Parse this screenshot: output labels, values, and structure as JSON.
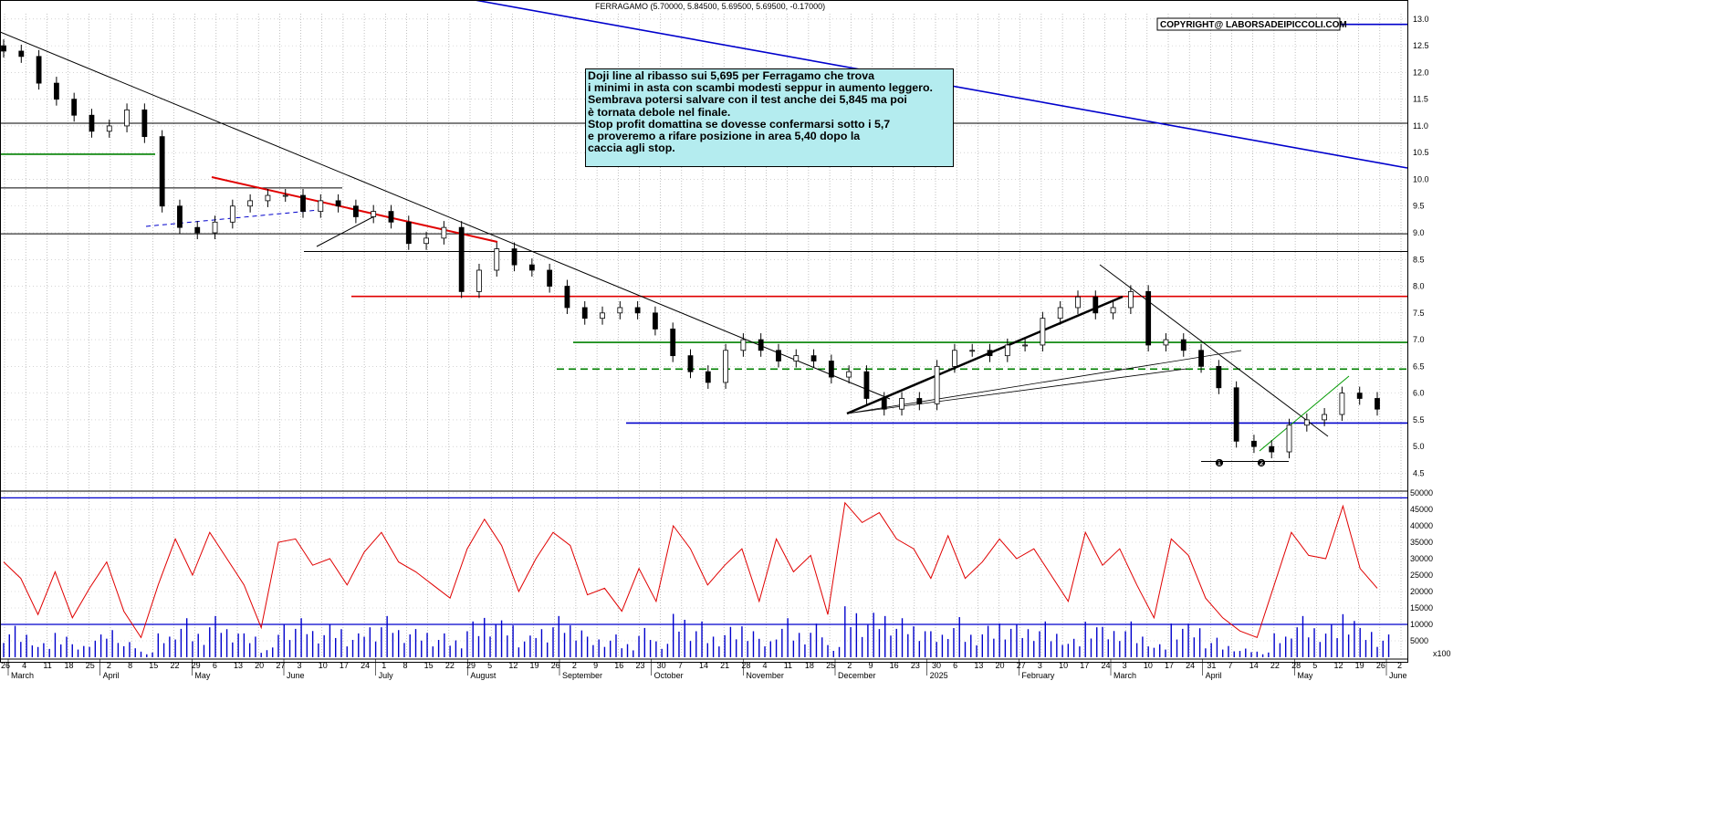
{
  "header": {
    "ticker_line": "FERRAGAMO (5.70000, 5.84500, 5.69500, 5.69500, -0.17000)",
    "copyright": "COPYRIGHT@ LABORSADEIPICCOLI.COM"
  },
  "note": {
    "lines": [
      "Doji line al ribasso sui 5,695 per Ferragamo che trova",
      "i minimi in asta con scambi modesti seppur in aumento leggero.",
      "Sembrava potersi salvare con il test anche dei 5,845 ma poi",
      "è tornata debole nel finale.",
      "Stop profit domattina se dovesse confermarsi sotto i 5,7",
      "e proveremo a rifare posizione in area 5,40 dopo la",
      "caccia agli stop."
    ]
  },
  "markers": [
    "❶",
    "❷"
  ],
  "volume_unit_label": "x100",
  "chart_data": [
    {
      "type": "candlestick",
      "title": "FERRAGAMO",
      "ylim": [
        4.2,
        13.1
      ],
      "y_ticks": [
        "4.5",
        "5.0",
        "5.5",
        "6.0",
        "6.5",
        "7.0",
        "7.5",
        "8.0",
        "8.5",
        "9.0",
        "9.5",
        "10.0",
        "10.5",
        "11.0",
        "11.5",
        "12.0",
        "12.5",
        "13.0"
      ],
      "x_date_labels": [
        "26",
        "4",
        "11",
        "18",
        "25",
        "2",
        "8",
        "15",
        "22",
        "29",
        "6",
        "13",
        "20",
        "27",
        "3",
        "10",
        "17",
        "24",
        "1",
        "8",
        "15",
        "22",
        "29",
        "5",
        "12",
        "19",
        "26",
        "2",
        "9",
        "16",
        "23",
        "30",
        "7",
        "14",
        "21",
        "28",
        "4",
        "11",
        "18",
        "25",
        "2",
        "9",
        "16",
        "23",
        "30",
        "6",
        "13",
        "20",
        "27",
        "3",
        "10",
        "17",
        "24",
        "3",
        "10",
        "17",
        "24",
        "31",
        "7",
        "14",
        "22",
        "28",
        "5",
        "12",
        "19",
        "26",
        "2"
      ],
      "x_month_labels": [
        "March",
        "April",
        "May",
        "June",
        "July",
        "August",
        "September",
        "October",
        "November",
        "December",
        "2025",
        "February",
        "March",
        "April",
        "May",
        "June"
      ],
      "close_series": [
        12.4,
        12.3,
        11.8,
        11.5,
        11.2,
        10.9,
        11.0,
        11.3,
        10.8,
        9.5,
        9.1,
        9.0,
        9.2,
        9.5,
        9.6,
        9.7,
        9.7,
        9.4,
        9.6,
        9.5,
        9.3,
        9.4,
        9.2,
        8.8,
        8.9,
        9.1,
        7.9,
        8.3,
        8.7,
        8.4,
        8.3,
        8.0,
        7.6,
        7.4,
        7.5,
        7.6,
        7.5,
        7.2,
        6.7,
        6.4,
        6.2,
        6.8,
        7.0,
        6.8,
        6.6,
        6.7,
        6.6,
        6.3,
        6.4,
        5.9,
        5.7,
        5.9,
        5.8,
        6.5,
        6.8,
        6.8,
        6.7,
        6.9,
        6.9,
        7.4,
        7.6,
        7.8,
        7.5,
        7.6,
        7.9,
        6.9,
        7.0,
        6.8,
        6.5,
        6.1,
        5.1,
        5.0,
        4.9,
        5.4,
        5.5,
        5.6,
        6.0,
        5.9,
        5.7
      ],
      "annotations": {
        "horizontal_levels": [
          {
            "value": 12.9,
            "color": "#0000cc"
          },
          {
            "value": 11.05,
            "color": "#000000"
          },
          {
            "value": 10.47,
            "color": "#008000"
          },
          {
            "value": 9.84,
            "color": "#000000"
          },
          {
            "value": 8.98,
            "color": "#000000"
          },
          {
            "value": 8.65,
            "color": "#000000"
          },
          {
            "value": 7.81,
            "color": "#e00000"
          },
          {
            "value": 6.95,
            "color": "#008000"
          },
          {
            "value": 6.45,
            "color": "#008000",
            "dashed": true
          },
          {
            "value": 5.44,
            "color": "#0000cc"
          },
          {
            "value": 4.72,
            "color": "#000000"
          }
        ]
      }
    },
    {
      "type": "bar",
      "title": "Volume",
      "ylim": [
        0,
        50000
      ],
      "y_ticks": [
        "5000",
        "10000",
        "15000",
        "20000",
        "25000",
        "30000",
        "35000",
        "40000",
        "45000",
        "50000"
      ],
      "reference_levels": [
        48500,
        10000
      ],
      "volume_avg_series": [
        29000,
        24000,
        13000,
        26000,
        12000,
        21000,
        29000,
        14000,
        6000,
        22000,
        36000,
        25000,
        38000,
        30000,
        22000,
        9000,
        35000,
        36000,
        28000,
        30000,
        22000,
        32000,
        38000,
        29000,
        26000,
        22000,
        18000,
        33000,
        42000,
        34000,
        20000,
        30000,
        38000,
        34000,
        19000,
        21000,
        14000,
        27000,
        17000,
        40000,
        33000,
        22000,
        28000,
        33000,
        17000,
        36000,
        26000,
        31000,
        13000,
        47000,
        41000,
        44000,
        36000,
        33000,
        24000,
        37000,
        24000,
        29000,
        36000,
        30000,
        33000,
        25000,
        17000,
        38000,
        28000,
        33000,
        22000,
        12000,
        36000,
        31000,
        18000,
        12000,
        8000,
        6000,
        22000,
        38000,
        31000,
        30000,
        46000,
        27000,
        21000
      ]
    }
  ]
}
